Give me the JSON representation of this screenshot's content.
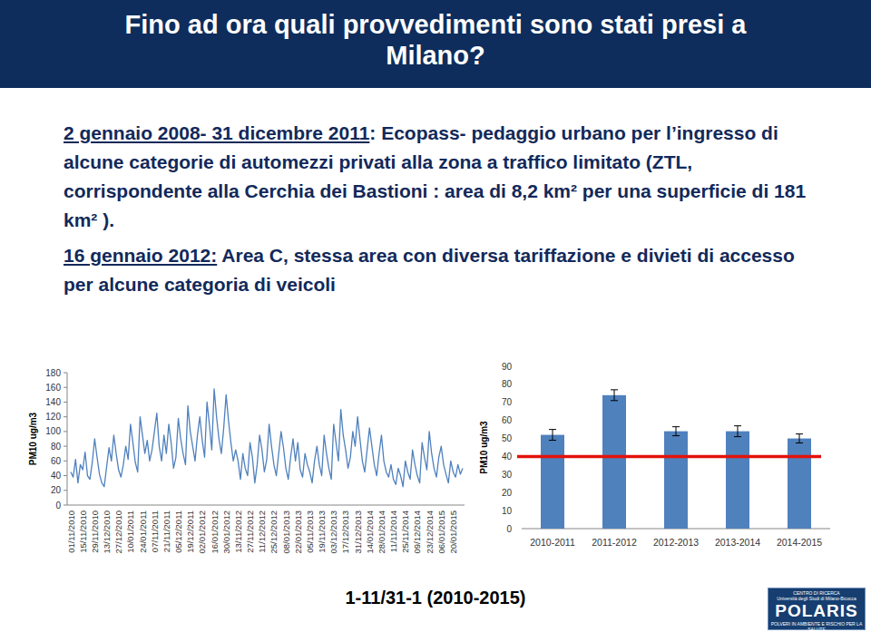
{
  "slide": {
    "title": [
      "Fino ad ora quali provvedimenti sono stati presi a",
      "Milano?"
    ],
    "paragraphs": [
      {
        "date": "2 gennaio 2008- 31 dicembre 2011",
        "text": ": Ecopass- pedaggio urbano per l’ingresso di alcune categorie di automezzi privati alla zona a traffico limitato (ZTL, corrispondente alla Cerchia dei Bastioni : area di 8,2 km² per una superficie di 181 km² )."
      },
      {
        "date": "16 gennaio 2012:",
        "text": "Area C, stessa area con  diversa tariffazione e divieti di accesso per alcune categoria di veicoli"
      }
    ],
    "caption": "1-11/31-1 (2010-2015)",
    "logo": {
      "top": "CENTRO DI RICERCA",
      "university": "Università degli Studi di Milano-Bicocca",
      "name": "POLARIS",
      "subtitle": "POLVERI IN AMBIENTE E RISCHIO PER LA SALUTE"
    }
  },
  "chart_data": [
    {
      "type": "line",
      "y_label": "PM10 ug/m3",
      "color": "#4f81bd",
      "grid": false,
      "ylim": [
        0,
        180
      ],
      "yticks": [
        0,
        20,
        40,
        60,
        80,
        100,
        120,
        140,
        160,
        180
      ],
      "categories": [
        "01/11/2010",
        null,
        null,
        null,
        null,
        "15/11/2010",
        null,
        null,
        null,
        null,
        "29/11/2010",
        null,
        null,
        null,
        null,
        "13/12/2010",
        null,
        null,
        null,
        null,
        "27/12/2010",
        null,
        null,
        null,
        null,
        "10/01/2011",
        null,
        null,
        null,
        null,
        "24/01/2011",
        null,
        null,
        null,
        null,
        "07/11/2011",
        null,
        null,
        null,
        null,
        "21/11/2011",
        null,
        null,
        null,
        null,
        "05/12/2011",
        null,
        null,
        null,
        null,
        "19/12/2011",
        null,
        null,
        null,
        null,
        "02/01/2012",
        null,
        null,
        null,
        null,
        "16/01/2012",
        null,
        null,
        null,
        null,
        "30/01/2012",
        null,
        null,
        null,
        null,
        "13/11/2012",
        null,
        null,
        null,
        null,
        "27/11/2012",
        null,
        null,
        null,
        null,
        "11/12/2012",
        null,
        null,
        null,
        null,
        "25/12/2012",
        null,
        null,
        null,
        null,
        "08/01/2013",
        null,
        null,
        null,
        null,
        "22/01/2013",
        null,
        null,
        null,
        null,
        "05/11/2013",
        null,
        null,
        null,
        null,
        "19/11/2013",
        null,
        null,
        null,
        null,
        "03/12/2013",
        null,
        null,
        null,
        null,
        "17/12/2013",
        null,
        null,
        null,
        null,
        "31/12/2013",
        null,
        null,
        null,
        null,
        "14/01/2014",
        null,
        null,
        null,
        null,
        "28/01/2014",
        null,
        null,
        null,
        null,
        "11/11/2014",
        null,
        null,
        null,
        null,
        "25/11/2014",
        null,
        null,
        null,
        null,
        "09/12/2014",
        null,
        null,
        null,
        null,
        "23/12/2014",
        null,
        null,
        null,
        null,
        "06/01/2015",
        null,
        null,
        null,
        null,
        "20/01/2015",
        null,
        null,
        null,
        null
      ],
      "values": [
        45,
        38,
        62,
        30,
        55,
        48,
        72,
        40,
        35,
        58,
        90,
        65,
        42,
        30,
        25,
        52,
        78,
        60,
        95,
        70,
        48,
        38,
        55,
        80,
        62,
        110,
        85,
        58,
        45,
        120,
        95,
        70,
        88,
        60,
        75,
        100,
        125,
        80,
        60,
        95,
        70,
        110,
        85,
        50,
        65,
        118,
        90,
        70,
        55,
        135,
        100,
        80,
        60,
        95,
        120,
        88,
        65,
        140,
        110,
        75,
        158,
        120,
        90,
        70,
        105,
        150,
        115,
        85,
        60,
        75,
        60,
        35,
        70,
        50,
        40,
        85,
        65,
        30,
        55,
        95,
        75,
        45,
        62,
        110,
        80,
        55,
        40,
        70,
        100,
        78,
        50,
        35,
        65,
        90,
        60,
        85,
        48,
        38,
        70,
        55,
        45,
        30,
        60,
        80,
        55,
        40,
        95,
        70,
        50,
        35,
        110,
        85,
        60,
        130,
        95,
        75,
        50,
        65,
        100,
        80,
        120,
        90,
        60,
        45,
        75,
        105,
        80,
        55,
        40,
        70,
        95,
        60,
        45,
        38,
        55,
        35,
        28,
        50,
        40,
        25,
        60,
        45,
        35,
        75,
        55,
        40,
        30,
        85,
        65,
        48,
        100,
        70,
        50,
        38,
        65,
        80,
        55,
        42,
        30,
        60,
        45,
        38,
        55,
        42,
        50
      ]
    },
    {
      "type": "bar",
      "y_label": "PM10 ug/m3",
      "color": "#4f81bd",
      "grid": false,
      "ylim": [
        0,
        90
      ],
      "yticks": [
        0,
        10,
        20,
        30,
        40,
        50,
        60,
        70,
        80,
        90
      ],
      "categories": [
        "2010-2011",
        "2011-2012",
        "2012-2013",
        "2013-2014",
        "2014-2015"
      ],
      "values": [
        52,
        74,
        54,
        54,
        50
      ],
      "errors": [
        3,
        3,
        2.5,
        3,
        2.5
      ],
      "threshold": 40
    }
  ]
}
